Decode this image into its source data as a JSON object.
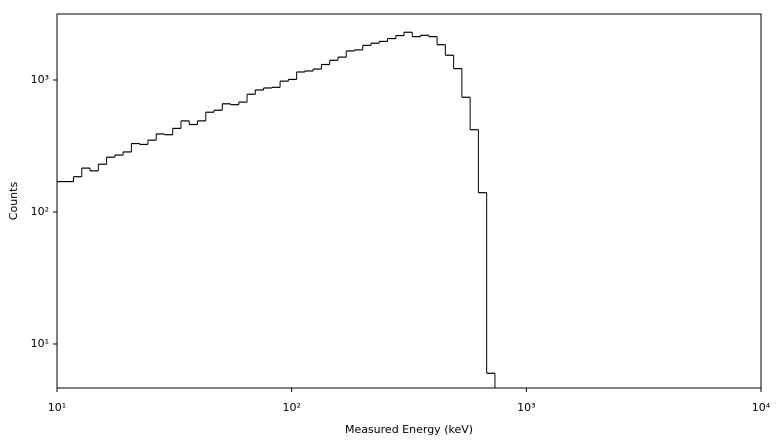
{
  "chart_data": {
    "type": "histogram",
    "x_label": "Measured Energy (keV)",
    "y_label": "Counts",
    "bins": [
      10,
      10.84,
      11.76,
      12.75,
      13.83,
      15.0,
      16.27,
      17.64,
      19.13,
      20.75,
      22.5,
      24.4,
      26.46,
      28.7,
      31.12,
      33.75,
      36.6,
      39.69,
      43.04,
      46.67,
      50.61,
      54.89,
      59.52,
      64.55,
      69.98,
      75.91,
      82.32,
      89.27,
      96.81,
      105.0,
      113.8,
      123.4,
      133.9,
      145.2,
      157.4,
      170.8,
      185.2,
      200.8,
      217.8,
      236.2,
      256.1,
      277.8,
      301.2,
      326.6,
      354.2,
      384.2,
      416.6,
      451.8,
      489.9,
      531.3,
      576.2,
      624.8,
      677.6,
      734.8
    ],
    "values": [
      170,
      170,
      185,
      215,
      205,
      230,
      260,
      270,
      285,
      330,
      325,
      350,
      390,
      385,
      430,
      490,
      460,
      490,
      570,
      590,
      660,
      650,
      680,
      780,
      840,
      870,
      880,
      980,
      1010,
      1150,
      1170,
      1210,
      1310,
      1410,
      1490,
      1660,
      1690,
      1830,
      1900,
      1960,
      2060,
      2170,
      2300,
      2130,
      2180,
      2130,
      1850,
      1540,
      1220,
      740,
      420,
      140,
      6
    ],
    "color": "#000000",
    "x_log": true,
    "y_log": true,
    "xlim": [
      10,
      10000
    ],
    "ylim": [
      4.64,
      3162
    ],
    "xticks": [
      {
        "value": 10,
        "label": "10¹"
      },
      {
        "value": 100,
        "label": "10²"
      },
      {
        "value": 1000,
        "label": "10³"
      },
      {
        "value": 10000,
        "label": "10⁴"
      }
    ],
    "yticks": [
      {
        "value": 10,
        "label": "10¹"
      },
      {
        "value": 100,
        "label": "10²"
      },
      {
        "value": 1000,
        "label": "10³"
      }
    ]
  }
}
